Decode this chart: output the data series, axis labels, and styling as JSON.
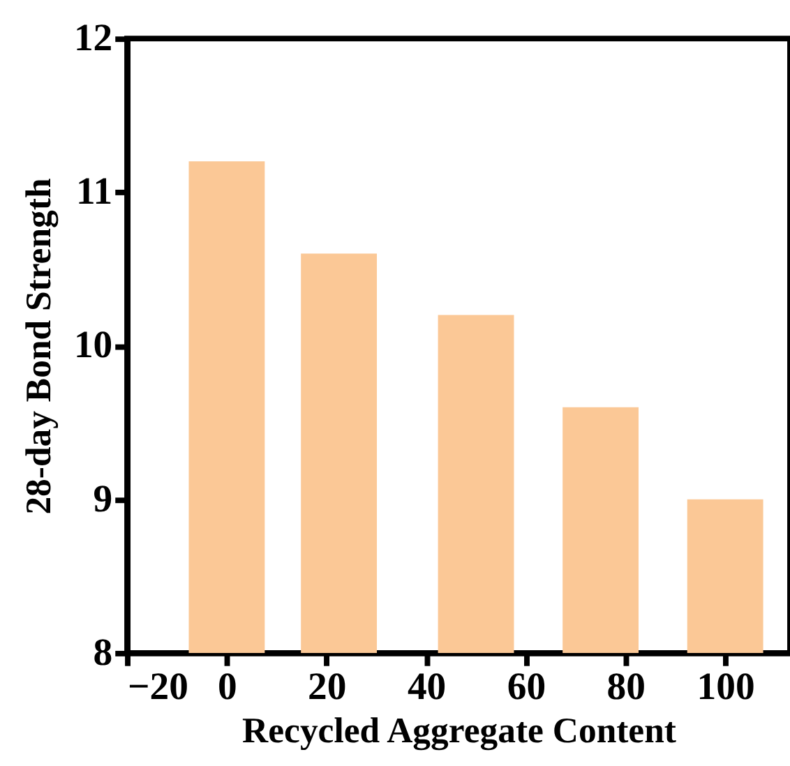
{
  "chart_data": {
    "type": "bar",
    "xlabel": "Recycled Aggregate Content",
    "ylabel": "28-day  Bond Strength",
    "x": [
      0,
      22.5,
      50,
      75,
      100
    ],
    "values": [
      11.2,
      10.6,
      10.2,
      9.6,
      9.0
    ],
    "color": "#fbc896",
    "xlim": [
      -20,
      113
    ],
    "xticks": [
      -20,
      0,
      20,
      40,
      60,
      80,
      100
    ],
    "ylim": [
      8,
      12
    ],
    "yticks": [
      8,
      9,
      10,
      11,
      12
    ],
    "grid": false
  }
}
